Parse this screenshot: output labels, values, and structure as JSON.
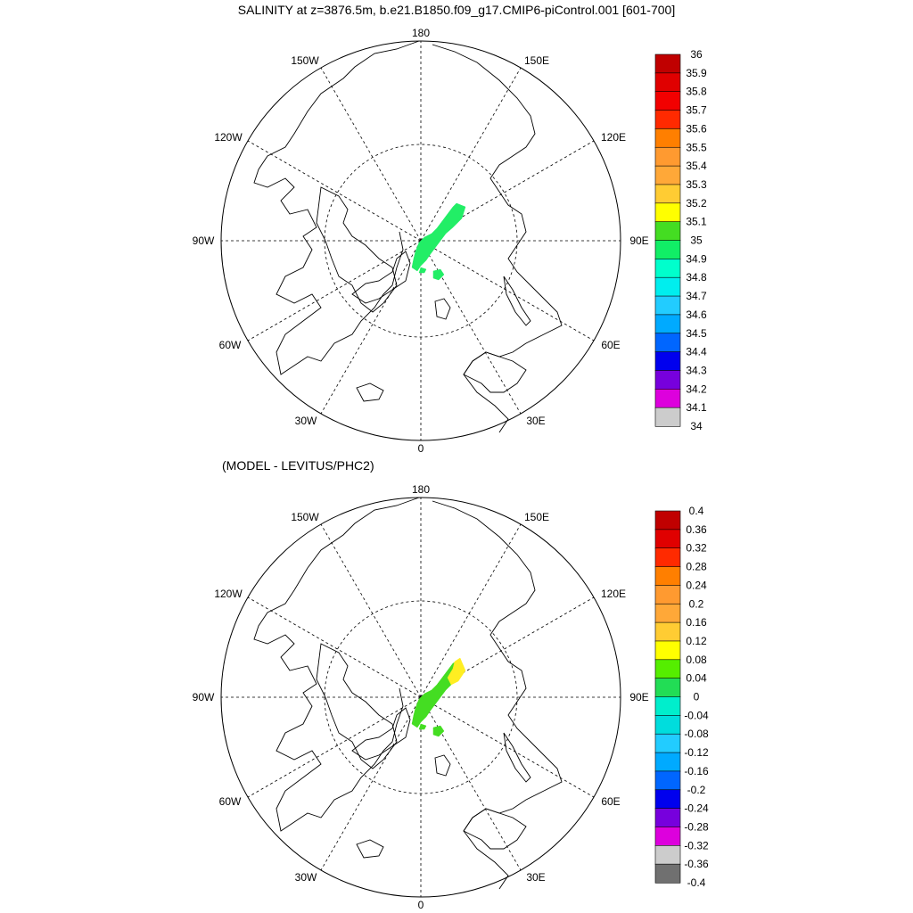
{
  "top_panel": {
    "title": "SALINITY at z=3876.5m, b.e21.B1850.f09_g17.CMIP6-piControl.001 [601-700]",
    "longitude_labels": {
      "lon_180": "180",
      "lon_150W": "150W",
      "lon_150E": "150E",
      "lon_120W": "120W",
      "lon_120E": "120E",
      "lon_90W": "90W",
      "lon_90E": "90E",
      "lon_60W": "60W",
      "lon_60E": "60E",
      "lon_30W": "30W",
      "lon_30E": "30E",
      "lon_0": "0"
    },
    "colorbar": {
      "labels": [
        "36",
        "35.9",
        "35.8",
        "35.7",
        "35.6",
        "35.5",
        "35.4",
        "35.3",
        "35.2",
        "35.1",
        "35",
        "34.9",
        "34.8",
        "34.7",
        "34.6",
        "34.5",
        "34.4",
        "34.3",
        "34.2",
        "34.1",
        "34"
      ],
      "colors": [
        "#c00000",
        "#e00000",
        "#f20000",
        "#ff2a00",
        "#ff7f00",
        "#ff9a30",
        "#ffa838",
        "#ffcc33",
        "#ffff00",
        "#44dd22",
        "#11ee66",
        "#00ffcc",
        "#00eeee",
        "#22ccff",
        "#00aaff",
        "#0066ff",
        "#0000ee",
        "#7700dd",
        "#dd00dd",
        "#cccccc",
        "#707070"
      ]
    },
    "field_color": "#22ee66"
  },
  "bottom_panel": {
    "title": "(MODEL - LEVITUS/PHC2)",
    "longitude_labels": {
      "lon_180": "180",
      "lon_150W": "150W",
      "lon_150E": "150E",
      "lon_120W": "120W",
      "lon_120E": "120E",
      "lon_90W": "90W",
      "lon_90E": "90E",
      "lon_60W": "60W",
      "lon_60E": "60E",
      "lon_30W": "30W",
      "lon_30E": "30E",
      "lon_0": "0"
    },
    "colorbar": {
      "labels": [
        "0.4",
        "0.36",
        "0.32",
        "0.28",
        "0.24",
        "0.2",
        "0.16",
        "0.12",
        "0.08",
        "0.04",
        "0",
        "-0.04",
        "-0.08",
        "-0.12",
        "-0.16",
        "-0.2",
        "-0.24",
        "-0.28",
        "-0.32",
        "-0.36",
        "-0.4"
      ],
      "colors": [
        "#c00000",
        "#e00000",
        "#ff2a00",
        "#ff7f00",
        "#ff9a30",
        "#ffa838",
        "#ffcc33",
        "#ffff00",
        "#55ee00",
        "#22dd55",
        "#00eecc",
        "#00dddd",
        "#22ccff",
        "#00aaff",
        "#0066ff",
        "#0000ee",
        "#7700dd",
        "#dd00dd",
        "#cccccc",
        "#707070"
      ]
    },
    "field_color": "#44dd22",
    "field_highlight_color": "#ffee22"
  }
}
